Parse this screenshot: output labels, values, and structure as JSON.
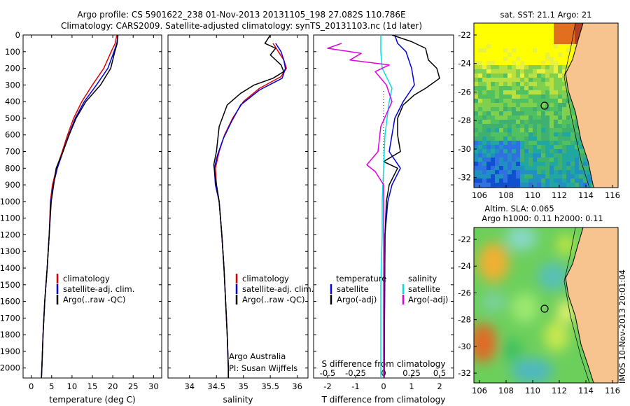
{
  "header": {
    "line1": "Argo profile: CS 5901622_238 01-Nov-2013 20131105_198 27.082S 110.786E",
    "line2": "Climatology: CARS2009. Satellite-adjusted climatology: synTS_20131103.nc (1d later)"
  },
  "colors": {
    "climatology": "#e00000",
    "satellite": "#0000e0",
    "argo": "#000000",
    "salinity_sat": "#00e0e0",
    "salinity_argo": "#e000e0",
    "land": "#f7c38f"
  },
  "chart_data": [
    {
      "type": "line",
      "title": "",
      "xlabel": "temperature (deg C)",
      "ylabel": "",
      "xlim": [
        -2,
        32
      ],
      "ylim": [
        2060,
        0
      ],
      "xticks": [
        0,
        5,
        10,
        15,
        20,
        25,
        30
      ],
      "yticks": [
        0,
        100,
        200,
        300,
        400,
        500,
        600,
        700,
        800,
        900,
        1000,
        1100,
        1200,
        1300,
        1400,
        1500,
        1600,
        1700,
        1800,
        1900,
        2000
      ],
      "legend": [
        "climatology",
        "satellite-adj. clim.",
        "Argo(..raw -QC)"
      ],
      "legend_position": "lower-center",
      "series": [
        {
          "name": "climatology",
          "color": "#e00000",
          "points": [
            [
              21,
              0
            ],
            [
              20.6,
              50
            ],
            [
              19.6,
              100
            ],
            [
              17.8,
              200
            ],
            [
              15,
              300
            ],
            [
              12.4,
              400
            ],
            [
              10.4,
              500
            ],
            [
              8.9,
              600
            ],
            [
              7.6,
              700
            ],
            [
              6.2,
              800
            ],
            [
              5.2,
              900
            ],
            [
              4.7,
              1000
            ],
            [
              4.4,
              1200
            ],
            [
              3.9,
              1400
            ],
            [
              3.3,
              1600
            ],
            [
              2.9,
              1800
            ],
            [
              2.6,
              2000
            ],
            [
              2.5,
              2060
            ]
          ]
        },
        {
          "name": "satellite-adj. clim.",
          "color": "#0000e0",
          "points": [
            [
              21.3,
              0
            ],
            [
              21,
              50
            ],
            [
              20.3,
              100
            ],
            [
              18.8,
              200
            ],
            [
              16,
              300
            ],
            [
              13,
              400
            ],
            [
              10.8,
              500
            ],
            [
              9.2,
              600
            ],
            [
              7.8,
              700
            ],
            [
              6.4,
              800
            ],
            [
              5.4,
              900
            ],
            [
              4.8,
              1000
            ],
            [
              4.4,
              1200
            ],
            [
              3.9,
              1400
            ],
            [
              3.3,
              1600
            ],
            [
              2.9,
              1800
            ],
            [
              2.6,
              2000
            ],
            [
              2.5,
              2060
            ]
          ]
        },
        {
          "name": "Argo(..raw -QC)",
          "color": "#000000",
          "points": [
            [
              21.2,
              0
            ],
            [
              21.1,
              50
            ],
            [
              20.5,
              100
            ],
            [
              19.5,
              200
            ],
            [
              17,
              300
            ],
            [
              13.4,
              400
            ],
            [
              11,
              500
            ],
            [
              9.3,
              600
            ],
            [
              7.8,
              700
            ],
            [
              6.1,
              800
            ],
            [
              5.5,
              900
            ],
            [
              4.9,
              1000
            ],
            [
              4.4,
              1200
            ],
            [
              3.9,
              1400
            ],
            [
              3.3,
              1600
            ],
            [
              2.9,
              1800
            ],
            [
              2.6,
              2000
            ],
            [
              2.5,
              2060
            ]
          ]
        }
      ]
    },
    {
      "type": "line",
      "title": "",
      "xlabel": "salinity",
      "xlim": [
        33.6,
        36.2
      ],
      "ylim": [
        2060,
        0
      ],
      "xticks": [
        34,
        34.5,
        35,
        35.5,
        36
      ],
      "legend": [
        "climatology",
        "satellite-adj. clim.",
        "Argo(..raw -QC)"
      ],
      "legend_position": "lower-center",
      "annotations": [
        "Argo Australia",
        "PI: Susan Wijffels"
      ],
      "series": [
        {
          "name": "climatology",
          "color": "#e00000",
          "points": [
            [
              35.55,
              50
            ],
            [
              35.65,
              100
            ],
            [
              35.75,
              150
            ],
            [
              35.8,
              200
            ],
            [
              35.7,
              250
            ],
            [
              35.3,
              320
            ],
            [
              35,
              400
            ],
            [
              34.8,
              500
            ],
            [
              34.65,
              600
            ],
            [
              34.55,
              700
            ],
            [
              34.48,
              800
            ],
            [
              34.5,
              900
            ],
            [
              34.55,
              1000
            ],
            [
              34.6,
              1200
            ],
            [
              34.64,
              1400
            ],
            [
              34.67,
              1600
            ],
            [
              34.7,
              1800
            ],
            [
              34.72,
              2000
            ],
            [
              34.72,
              2060
            ]
          ]
        },
        {
          "name": "satellite-adj. clim.",
          "color": "#0000e0",
          "points": [
            [
              35.6,
              50
            ],
            [
              35.7,
              100
            ],
            [
              35.75,
              150
            ],
            [
              35.78,
              200
            ],
            [
              35.72,
              260
            ],
            [
              35.3,
              330
            ],
            [
              34.95,
              420
            ],
            [
              34.78,
              520
            ],
            [
              34.63,
              620
            ],
            [
              34.52,
              720
            ],
            [
              34.46,
              800
            ],
            [
              34.48,
              900
            ],
            [
              34.55,
              1000
            ],
            [
              34.6,
              1200
            ],
            [
              34.64,
              1400
            ],
            [
              34.67,
              1600
            ],
            [
              34.7,
              1800
            ],
            [
              34.72,
              2000
            ],
            [
              34.72,
              2060
            ]
          ]
        },
        {
          "name": "Argo(..raw -QC)",
          "color": "#000000",
          "points": [
            [
              35.5,
              0
            ],
            [
              35.4,
              50
            ],
            [
              35.6,
              80
            ],
            [
              35.5,
              120
            ],
            [
              35.7,
              180
            ],
            [
              35.75,
              220
            ],
            [
              35.55,
              260
            ],
            [
              35.2,
              300
            ],
            [
              34.95,
              350
            ],
            [
              34.7,
              420
            ],
            [
              34.55,
              550
            ],
            [
              34.5,
              700
            ],
            [
              34.45,
              780
            ],
            [
              34.48,
              860
            ],
            [
              34.55,
              1000
            ],
            [
              34.6,
              1200
            ],
            [
              34.64,
              1400
            ],
            [
              34.67,
              1600
            ],
            [
              34.7,
              1800
            ],
            [
              34.72,
              2000
            ],
            [
              34.72,
              2060
            ]
          ]
        }
      ]
    },
    {
      "type": "line",
      "title": "",
      "xlabel": "T difference from climatology",
      "x2label": "S difference from climatology",
      "xlim": [
        -2.5,
        2.5
      ],
      "ylim": [
        2060,
        0
      ],
      "xticks": [
        "-2",
        "-1",
        "0",
        "1",
        "2"
      ],
      "x2ticks": [
        "-0.5",
        "-0.25",
        "0",
        "0.25",
        "0.5"
      ],
      "legend_groups": [
        {
          "title": "temperature",
          "entries": [
            "satellite",
            "Argo(-adj)"
          ]
        },
        {
          "title": "salinity",
          "entries": [
            "satellite",
            "Argo(-adj)"
          ]
        }
      ],
      "series": [
        {
          "name": "temperature satellite",
          "color": "#0000e0",
          "points": [
            [
              0.4,
              0
            ],
            [
              0.5,
              50
            ],
            [
              0.8,
              100
            ],
            [
              1,
              200
            ],
            [
              1.1,
              300
            ],
            [
              0.7,
              400
            ],
            [
              0.4,
              500
            ],
            [
              0.3,
              600
            ],
            [
              0.2,
              700
            ],
            [
              0.6,
              800
            ],
            [
              0.3,
              900
            ],
            [
              0.15,
              1000
            ],
            [
              0.05,
              1200
            ],
            [
              0.02,
              2060
            ]
          ]
        },
        {
          "name": "temperature Argo(-adj)",
          "color": "#000000",
          "points": [
            [
              0.3,
              0
            ],
            [
              1,
              40
            ],
            [
              1.5,
              80
            ],
            [
              1.6,
              150
            ],
            [
              1.9,
              200
            ],
            [
              2,
              260
            ],
            [
              1.5,
              320
            ],
            [
              1.1,
              360
            ],
            [
              0.7,
              420
            ],
            [
              0.5,
              500
            ],
            [
              0.5,
              600
            ],
            [
              0.6,
              700
            ],
            [
              0,
              760
            ],
            [
              0.5,
              800
            ],
            [
              0.2,
              900
            ],
            [
              0.1,
              1000
            ],
            [
              0.05,
              1200
            ],
            [
              0.02,
              2060
            ]
          ]
        },
        {
          "name": "salinity satellite",
          "color": "#00e0e0",
          "points": [
            [
              -0.1,
              0
            ],
            [
              -0.1,
              100
            ],
            [
              -0.05,
              200
            ],
            [
              0.3,
              320
            ],
            [
              0.2,
              400
            ],
            [
              0.05,
              600
            ],
            [
              0,
              800
            ],
            [
              -0.05,
              1000
            ],
            [
              -0.05,
              1200
            ],
            [
              -0.1,
              1500
            ],
            [
              -0.1,
              2060
            ]
          ]
        },
        {
          "name": "salinity Argo(-adj)",
          "color": "#e000e0",
          "points": [
            [
              -1.5,
              50
            ],
            [
              -2,
              80
            ],
            [
              -0.8,
              110
            ],
            [
              -1.2,
              150
            ],
            [
              0.2,
              180
            ],
            [
              -0.3,
              220
            ],
            [
              0.1,
              300
            ],
            [
              0.3,
              400
            ],
            [
              -0.1,
              550
            ],
            [
              -0.2,
              700
            ],
            [
              -0.6,
              780
            ],
            [
              -0.3,
              820
            ],
            [
              0,
              900
            ],
            [
              0,
              1000
            ],
            [
              0,
              1200
            ],
            [
              0,
              2060
            ]
          ]
        }
      ]
    }
  ],
  "maps": {
    "sst": {
      "title": "sat. SST: 21.1  Argo: 21",
      "xticks": [
        "106",
        "108",
        "110",
        "112",
        "114",
        "116"
      ],
      "yticks": [
        "-22",
        "-24",
        "-26",
        "-28",
        "-30",
        "-32"
      ],
      "float_position": {
        "lon": 110.786,
        "lat": -27.082
      }
    },
    "sla": {
      "title_line1": "Altim. SLA: 0.065",
      "title_line2": "Argo h1000: 0.11  h2000: 0.11",
      "xticks": [
        "106",
        "108",
        "110",
        "112",
        "114",
        "116"
      ],
      "yticks": [
        "-22",
        "-24",
        "-26",
        "-28",
        "-30",
        "-32"
      ],
      "float_position": {
        "lon": 110.786,
        "lat": -27.082
      }
    }
  },
  "footer": {
    "side_label": "IMOS 10-Nov-2013 20:01:04"
  }
}
